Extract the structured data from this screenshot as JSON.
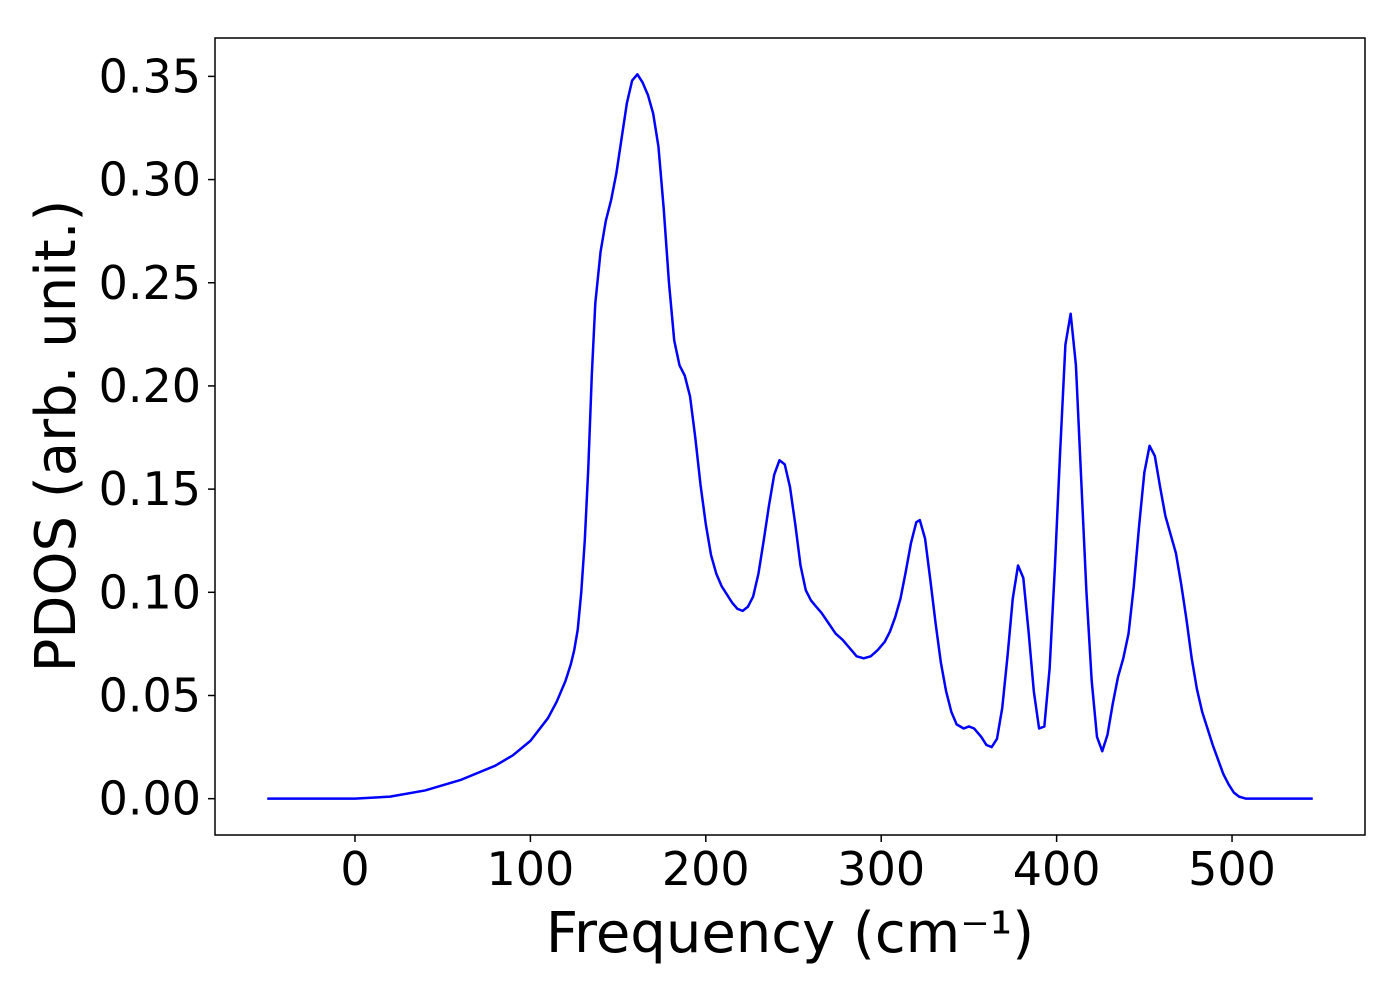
{
  "chart_data": {
    "type": "line",
    "xlabel": "Frequency (cm⁻¹)",
    "ylabel": "PDOS (arb. unit.)",
    "x": [
      -50,
      0,
      20,
      40,
      60,
      80,
      90,
      100,
      110,
      115,
      120,
      123,
      125,
      127,
      129,
      131,
      133,
      135,
      137,
      140,
      143,
      146,
      149,
      152,
      155,
      158,
      161,
      164,
      167,
      170,
      173,
      176,
      179,
      182,
      185,
      188,
      191,
      194,
      197,
      200,
      203,
      206,
      209,
      212,
      215,
      218,
      221,
      224,
      227,
      230,
      233,
      236,
      239,
      242,
      245,
      248,
      251,
      254,
      257,
      260,
      263,
      266,
      270,
      274,
      278,
      282,
      286,
      290,
      294,
      298,
      302,
      305,
      308,
      311,
      314,
      317,
      320,
      322,
      325,
      328,
      331,
      334,
      337,
      340,
      343,
      347,
      350,
      353,
      357,
      360,
      363,
      366,
      369,
      372,
      375,
      378,
      381,
      384,
      387,
      390,
      393,
      396,
      399,
      402,
      405,
      408,
      411,
      414,
      417,
      420,
      423,
      426,
      429,
      432,
      435,
      438,
      441,
      444,
      447,
      450,
      453,
      456,
      459,
      462,
      465,
      468,
      471,
      474,
      477,
      480,
      483,
      486,
      489,
      492,
      495,
      498,
      501,
      504,
      508,
      520,
      546
    ],
    "series": [
      {
        "name": "PDOS",
        "color": "#0000ff",
        "values": [
          0,
          0,
          0.001,
          0.004,
          0.009,
          0.016,
          0.021,
          0.028,
          0.039,
          0.047,
          0.057,
          0.065,
          0.072,
          0.082,
          0.1,
          0.125,
          0.16,
          0.205,
          0.24,
          0.265,
          0.28,
          0.29,
          0.303,
          0.32,
          0.337,
          0.348,
          0.351,
          0.347,
          0.341,
          0.332,
          0.316,
          0.286,
          0.25,
          0.222,
          0.21,
          0.205,
          0.195,
          0.175,
          0.152,
          0.133,
          0.118,
          0.109,
          0.103,
          0.099,
          0.095,
          0.092,
          0.091,
          0.093,
          0.098,
          0.109,
          0.125,
          0.142,
          0.157,
          0.164,
          0.162,
          0.151,
          0.133,
          0.113,
          0.101,
          0.096,
          0.093,
          0.09,
          0.085,
          0.08,
          0.077,
          0.073,
          0.069,
          0.068,
          0.069,
          0.072,
          0.076,
          0.081,
          0.088,
          0.097,
          0.11,
          0.124,
          0.134,
          0.135,
          0.126,
          0.106,
          0.085,
          0.066,
          0.052,
          0.042,
          0.036,
          0.034,
          0.035,
          0.034,
          0.03,
          0.026,
          0.025,
          0.029,
          0.044,
          0.069,
          0.097,
          0.113,
          0.107,
          0.081,
          0.052,
          0.034,
          0.035,
          0.063,
          0.112,
          0.168,
          0.22,
          0.235,
          0.21,
          0.155,
          0.1,
          0.057,
          0.03,
          0.023,
          0.031,
          0.046,
          0.059,
          0.068,
          0.08,
          0.103,
          0.132,
          0.158,
          0.171,
          0.166,
          0.151,
          0.137,
          0.128,
          0.119,
          0.104,
          0.087,
          0.068,
          0.053,
          0.042,
          0.034,
          0.026,
          0.019,
          0.012,
          0.007,
          0.003,
          0.001,
          0,
          0,
          0
        ]
      }
    ],
    "xlim": [
      -79.8,
      575.8
    ],
    "ylim": [
      -0.0176,
      0.3686
    ],
    "xticks": [
      0,
      100,
      200,
      300,
      400,
      500
    ],
    "yticks": [
      {
        "value": 0,
        "label": "0.00"
      },
      {
        "value": 0.05,
        "label": "0.05"
      },
      {
        "value": 0.1,
        "label": "0.10"
      },
      {
        "value": 0.15,
        "label": "0.15"
      },
      {
        "value": 0.2,
        "label": "0.20"
      },
      {
        "value": 0.25,
        "label": "0.25"
      },
      {
        "value": 0.3,
        "label": "0.30"
      },
      {
        "value": 0.35,
        "label": "0.35"
      }
    ],
    "grid": false
  }
}
